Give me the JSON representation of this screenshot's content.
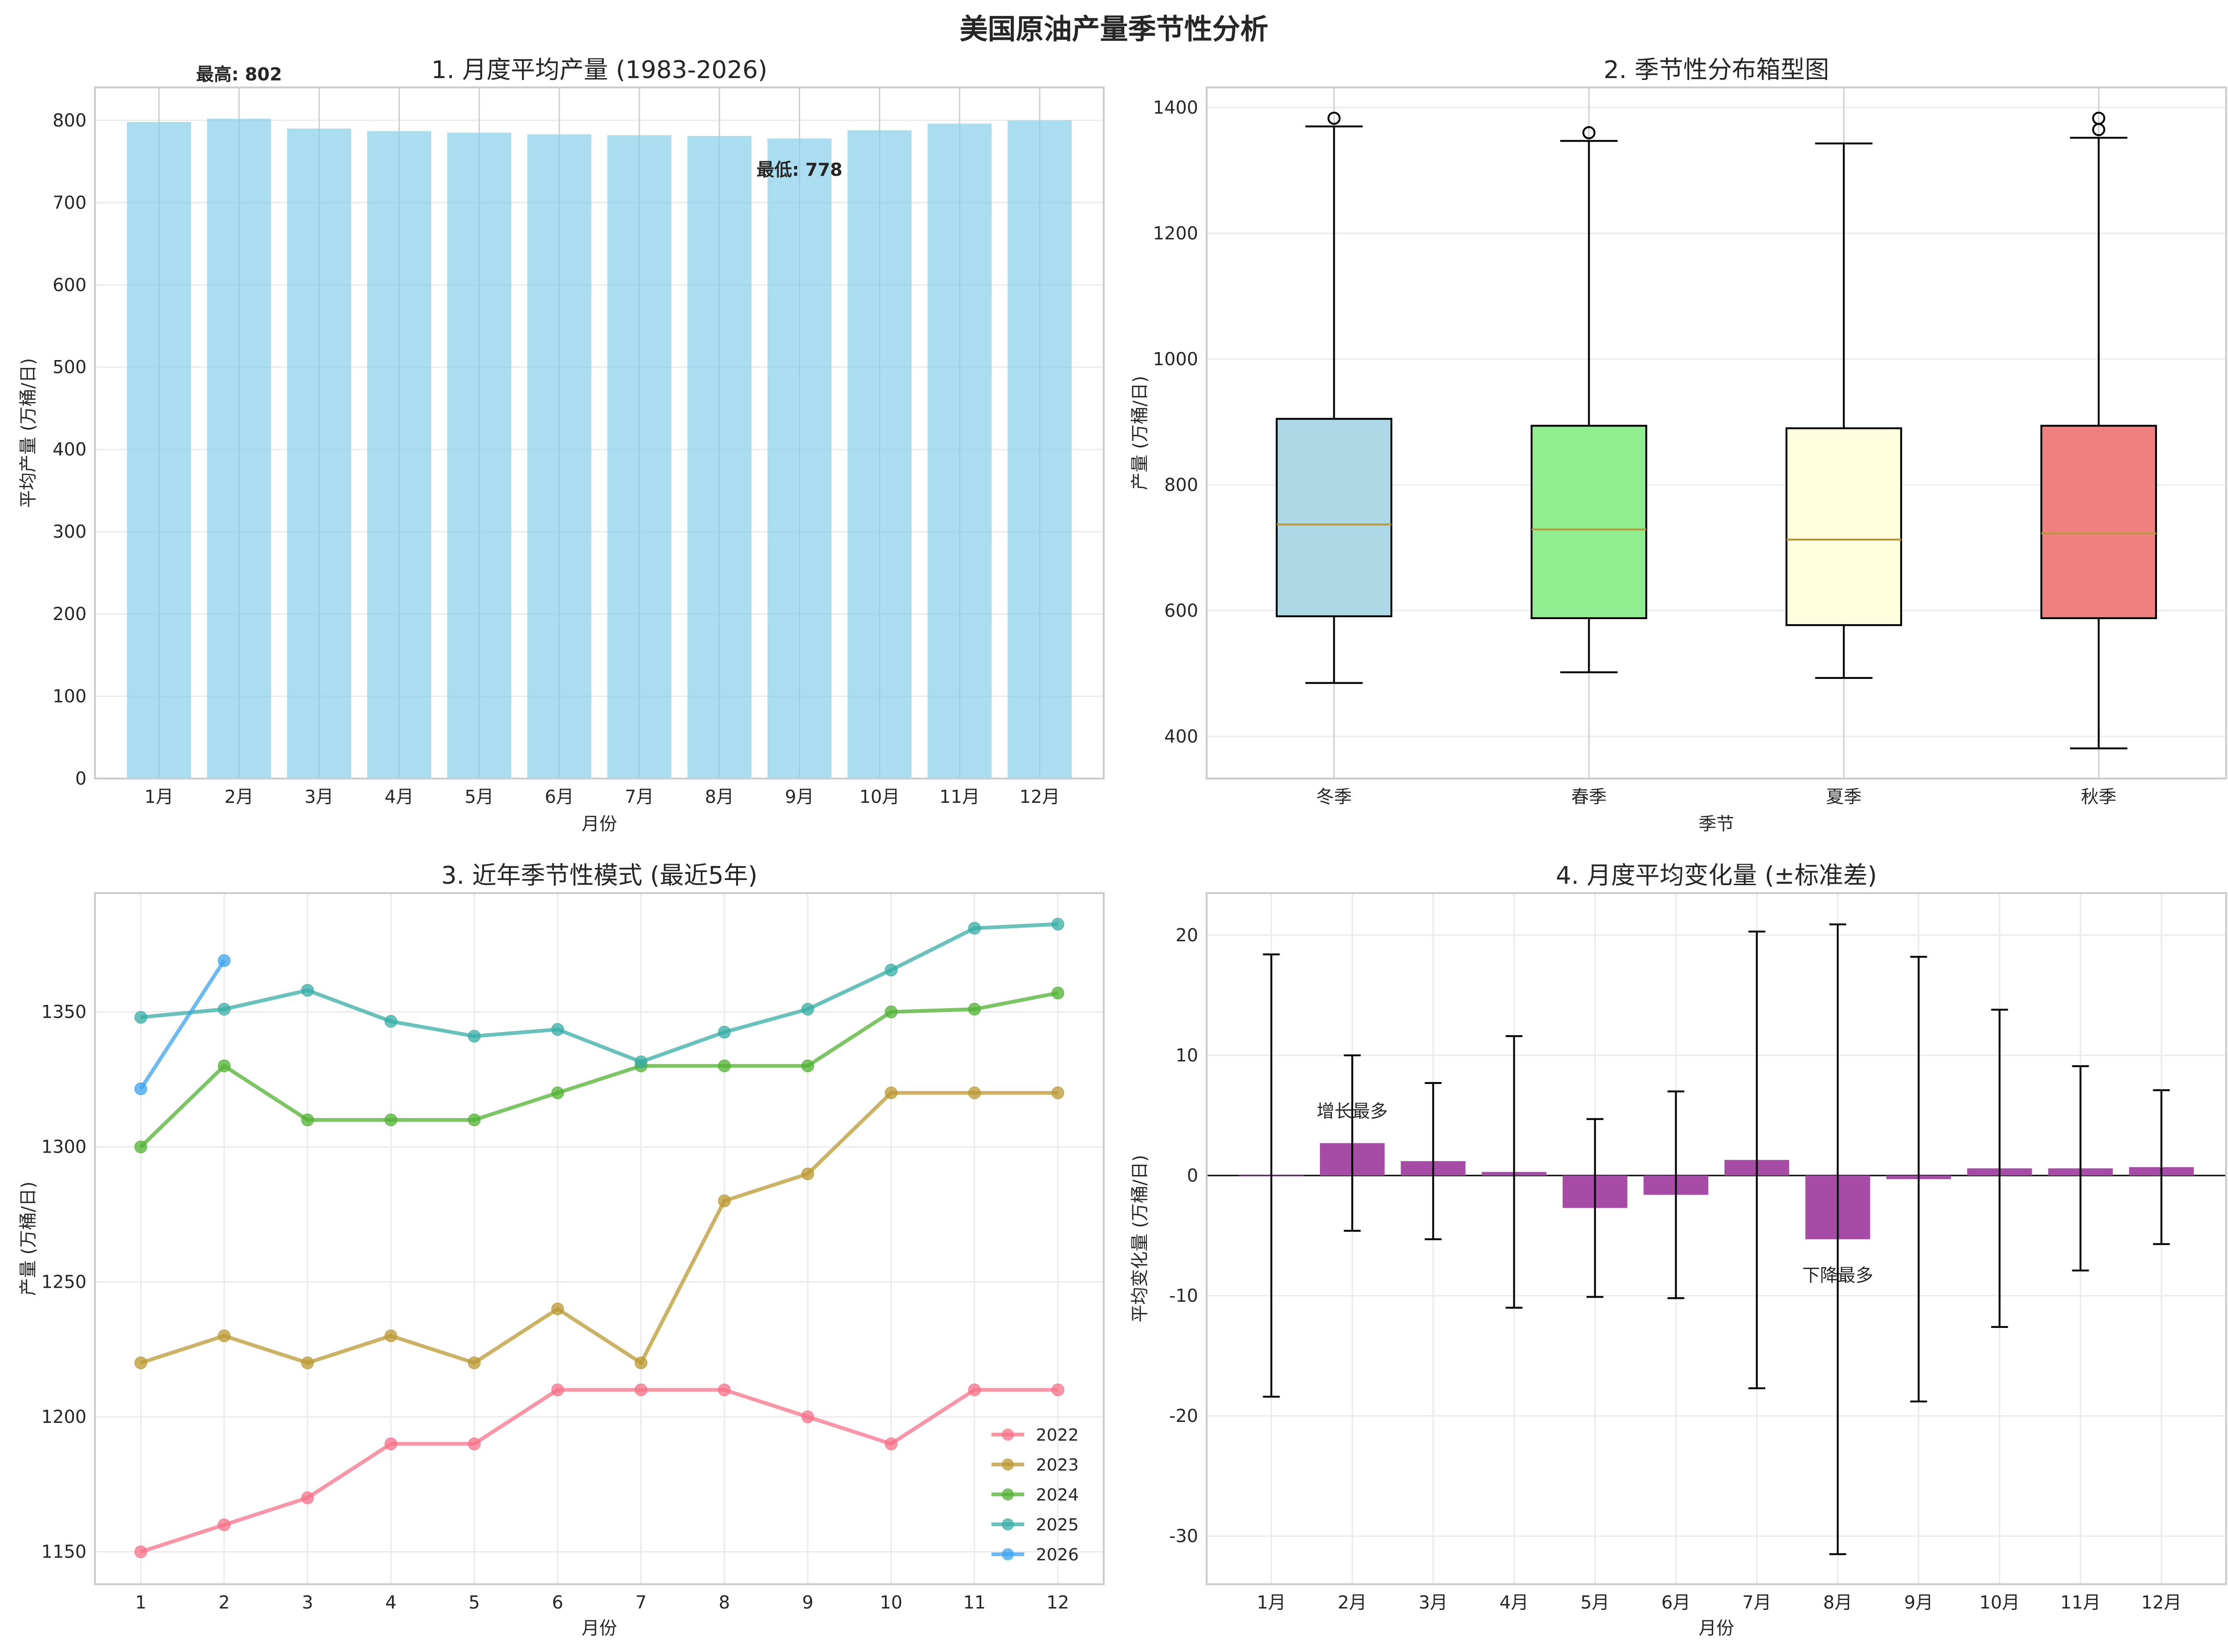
{
  "title": "美国原油产量季节性分析",
  "chart_data": [
    {
      "id": "monthly-avg",
      "type": "bar",
      "title": "1. 月度平均产量 (1983-2026)",
      "xlabel": "月份",
      "ylabel": "平均产量 (万桶/日)",
      "categories": [
        "1月",
        "2月",
        "3月",
        "4月",
        "5月",
        "6月",
        "7月",
        "8月",
        "9月",
        "10月",
        "11月",
        "12月"
      ],
      "values": [
        798,
        802,
        790,
        787,
        785,
        783,
        782,
        781,
        778,
        788,
        796,
        800
      ],
      "ylim": [
        0,
        840
      ],
      "yticks": [
        0,
        100,
        200,
        300,
        400,
        500,
        600,
        700,
        800
      ],
      "grid": true,
      "bar_color": "#87ceeb",
      "annotations": [
        {
          "text": "最高: 802",
          "category": "2月",
          "value": 802,
          "color": "#ff0000"
        },
        {
          "text": "最低: 778",
          "category": "9月",
          "value": 778,
          "color": "#0000ff"
        }
      ]
    },
    {
      "id": "season-box",
      "type": "box",
      "title": "2. 季节性分布箱型图",
      "xlabel": "季节",
      "ylabel": "产量 (万桶/日)",
      "categories": [
        "冬季",
        "春季",
        "夏季",
        "秋季"
      ],
      "boxes": [
        {
          "name": "冬季",
          "whislo": 485,
          "q1": 591,
          "med": 737,
          "q3": 905,
          "whishi": 1370,
          "fliers": [
            1383
          ],
          "color": "#add8e6"
        },
        {
          "name": "春季",
          "whislo": 502,
          "q1": 588,
          "med": 729,
          "q3": 894,
          "whishi": 1347,
          "fliers": [
            1360
          ],
          "color": "#90ee90"
        },
        {
          "name": "夏季",
          "whislo": 493,
          "q1": 577,
          "med": 713,
          "q3": 890,
          "whishi": 1343,
          "fliers": [],
          "color": "#ffffe0"
        },
        {
          "name": "秋季",
          "whislo": 381,
          "q1": 588,
          "med": 723,
          "q3": 894,
          "whishi": 1352,
          "fliers": [
            1365,
            1383
          ],
          "color": "#f08080"
        }
      ],
      "ylim": [
        333,
        1432
      ],
      "yticks": [
        400,
        600,
        800,
        1000,
        1200,
        1400
      ],
      "grid": true,
      "median_color": "#b8973b"
    },
    {
      "id": "recent-years",
      "type": "line",
      "title": "3. 近年季节性模式 (最近5年)",
      "xlabel": "月份",
      "ylabel": "产量 (万桶/日)",
      "x": [
        1,
        2,
        3,
        4,
        5,
        6,
        7,
        8,
        9,
        10,
        11,
        12
      ],
      "series": [
        {
          "name": "2022",
          "color": "#f77189",
          "values": [
            1150,
            1160,
            1170,
            1190,
            1190,
            1210,
            1210,
            1210,
            1200,
            1190,
            1210,
            1210
          ]
        },
        {
          "name": "2023",
          "color": "#bb9832",
          "values": [
            1220,
            1230,
            1220,
            1230,
            1220,
            1240,
            1220,
            1280,
            1290,
            1320,
            1320,
            1320
          ]
        },
        {
          "name": "2024",
          "color": "#50b131",
          "values": [
            1300,
            1330,
            1310,
            1310,
            1310,
            1320,
            1330,
            1330,
            1330,
            1350,
            1351,
            1357
          ]
        },
        {
          "name": "2025",
          "color": "#36ada4",
          "values": [
            1348,
            1351,
            1358,
            1346.5,
            1341,
            1343.5,
            1331.5,
            1342.5,
            1351,
            1365.5,
            1381,
            1382.5
          ]
        },
        {
          "name": "2026",
          "color": "#3ba3ec",
          "values": [
            1321.5,
            1369
          ]
        }
      ],
      "xlim": [
        0.45,
        12.55
      ],
      "ylim": [
        1138,
        1394
      ],
      "yticks": [
        1150,
        1200,
        1250,
        1300,
        1350
      ],
      "grid": true,
      "legend": "lower-right"
    },
    {
      "id": "monthly-change",
      "type": "bar",
      "title": "4. 月度平均变化量 (±标准差)",
      "xlabel": "月份",
      "ylabel": "平均变化量 (万桶/日)",
      "categories": [
        "1月",
        "2月",
        "3月",
        "4月",
        "5月",
        "6月",
        "7月",
        "8月",
        "9月",
        "10月",
        "11月",
        "12月"
      ],
      "values": [
        0,
        2.7,
        1.2,
        0.3,
        -2.7,
        -1.6,
        1.3,
        -5.3,
        -0.3,
        0.6,
        0.6,
        0.7
      ],
      "errors": [
        18.4,
        7.3,
        6.5,
        11.3,
        7.4,
        8.6,
        19.0,
        26.2,
        18.5,
        13.2,
        8.5,
        6.4
      ],
      "ylim": [
        -34,
        23.5
      ],
      "yticks": [
        -30,
        -20,
        -10,
        0,
        10,
        20
      ],
      "grid": true,
      "bar_color": "#a64ca6",
      "annotations": [
        {
          "text": "增长最多",
          "category": "2月",
          "value": 2.7,
          "color": "#ff0000"
        },
        {
          "text": "下降最多",
          "category": "8月",
          "value": -5.3,
          "color": "#0000ff"
        }
      ]
    }
  ]
}
